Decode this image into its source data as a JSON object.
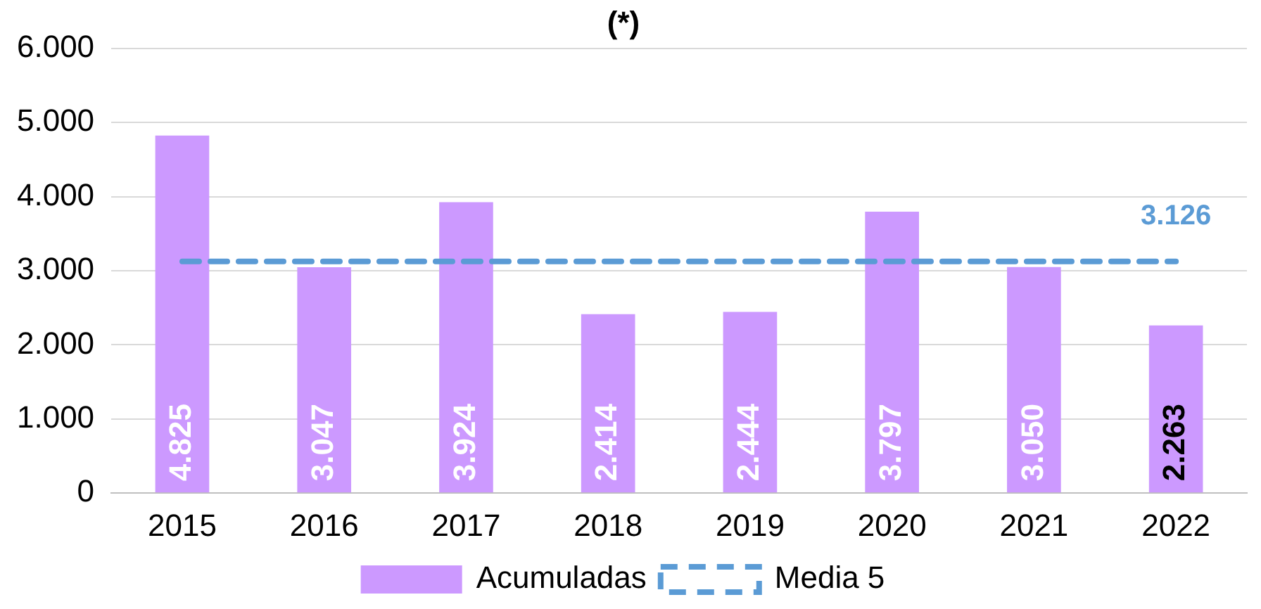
{
  "chart_data": {
    "type": "bar",
    "title": "(*)",
    "categories": [
      "2015",
      "2016",
      "2017",
      "2018",
      "2019",
      "2020",
      "2021",
      "2022"
    ],
    "series": [
      {
        "name": "Acumuladas",
        "color": "#cc99ff",
        "values": [
          4825,
          3047,
          3924,
          2414,
          2444,
          3797,
          3050,
          2263
        ],
        "value_labels": [
          "4.825",
          "3.047",
          "3.924",
          "2.414",
          "2.444",
          "3.797",
          "3.050",
          "2.263"
        ]
      },
      {
        "name": "Media 5",
        "type": "line",
        "color": "#5b9bd5",
        "line_style": "dashed",
        "marker": "none",
        "values": [
          3126,
          3126,
          3126,
          3126,
          3126,
          3126,
          3126,
          3126
        ]
      }
    ],
    "annotations": [
      {
        "text": "3.126",
        "x": "2022",
        "y": 3126
      }
    ],
    "ylim": [
      0,
      6000
    ],
    "yticks": [
      {
        "value": 0,
        "label": "0"
      },
      {
        "value": 1000,
        "label": "1.000"
      },
      {
        "value": 2000,
        "label": "2.000"
      },
      {
        "value": 3000,
        "label": "3.000"
      },
      {
        "value": 4000,
        "label": "4.000"
      },
      {
        "value": 5000,
        "label": "5.000"
      },
      {
        "value": 6000,
        "label": "6.000"
      }
    ],
    "grid": "y",
    "legend": "bottom"
  }
}
